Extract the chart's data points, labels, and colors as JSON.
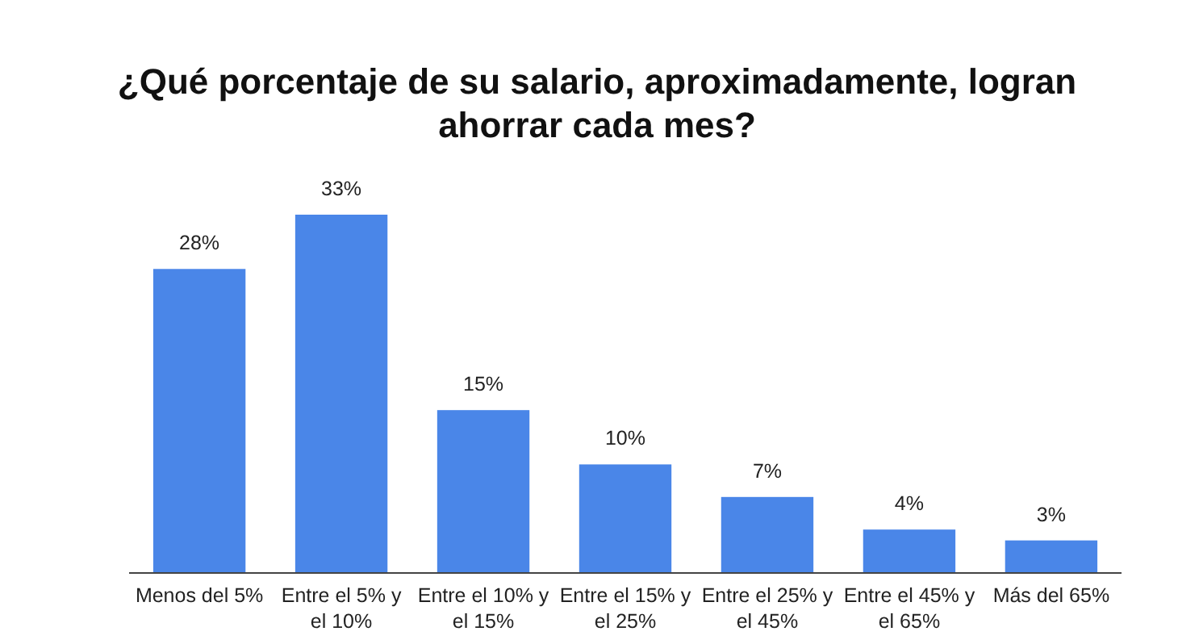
{
  "chart_data": {
    "type": "bar",
    "title": "¿Qué porcentaje de su salario, aproximadamente, logran ahorrar cada mes?",
    "categories": [
      "Menos del 5%",
      "Entre el 5% y el 10%",
      "Entre el 10% y el 15%",
      "Entre el 15% y el 25%",
      "Entre el 25% y el 45%",
      "Entre el 45% y el 65%",
      "Más del 65%"
    ],
    "values": [
      28,
      33,
      15,
      10,
      7,
      4,
      3
    ],
    "value_labels": [
      "28%",
      "33%",
      "15%",
      "10%",
      "7%",
      "4%",
      "3%"
    ],
    "color": "#4a86e8",
    "grid": false
  }
}
